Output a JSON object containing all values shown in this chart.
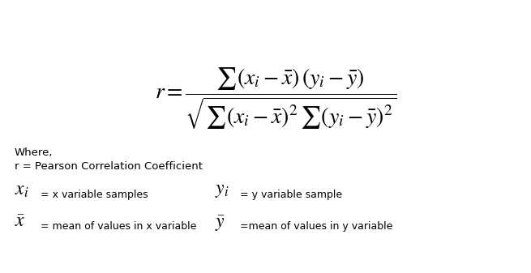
{
  "bg_color": "#ffffff",
  "text_color": "#000000",
  "where_text": "Where,",
  "r_def": "r = Pearson Correlation Coefficient",
  "xi_desc": "= x variable samples",
  "yi_desc": "= y variable sample",
  "xbar_desc": "= mean of values in x variable",
  "ybar_desc": "=mean of values in y variable",
  "formula_fontsize": 20,
  "label_fontsize": 9,
  "symbol_fontsize": 17,
  "where_fontsize": 9.5,
  "r_def_fontsize": 9.5
}
